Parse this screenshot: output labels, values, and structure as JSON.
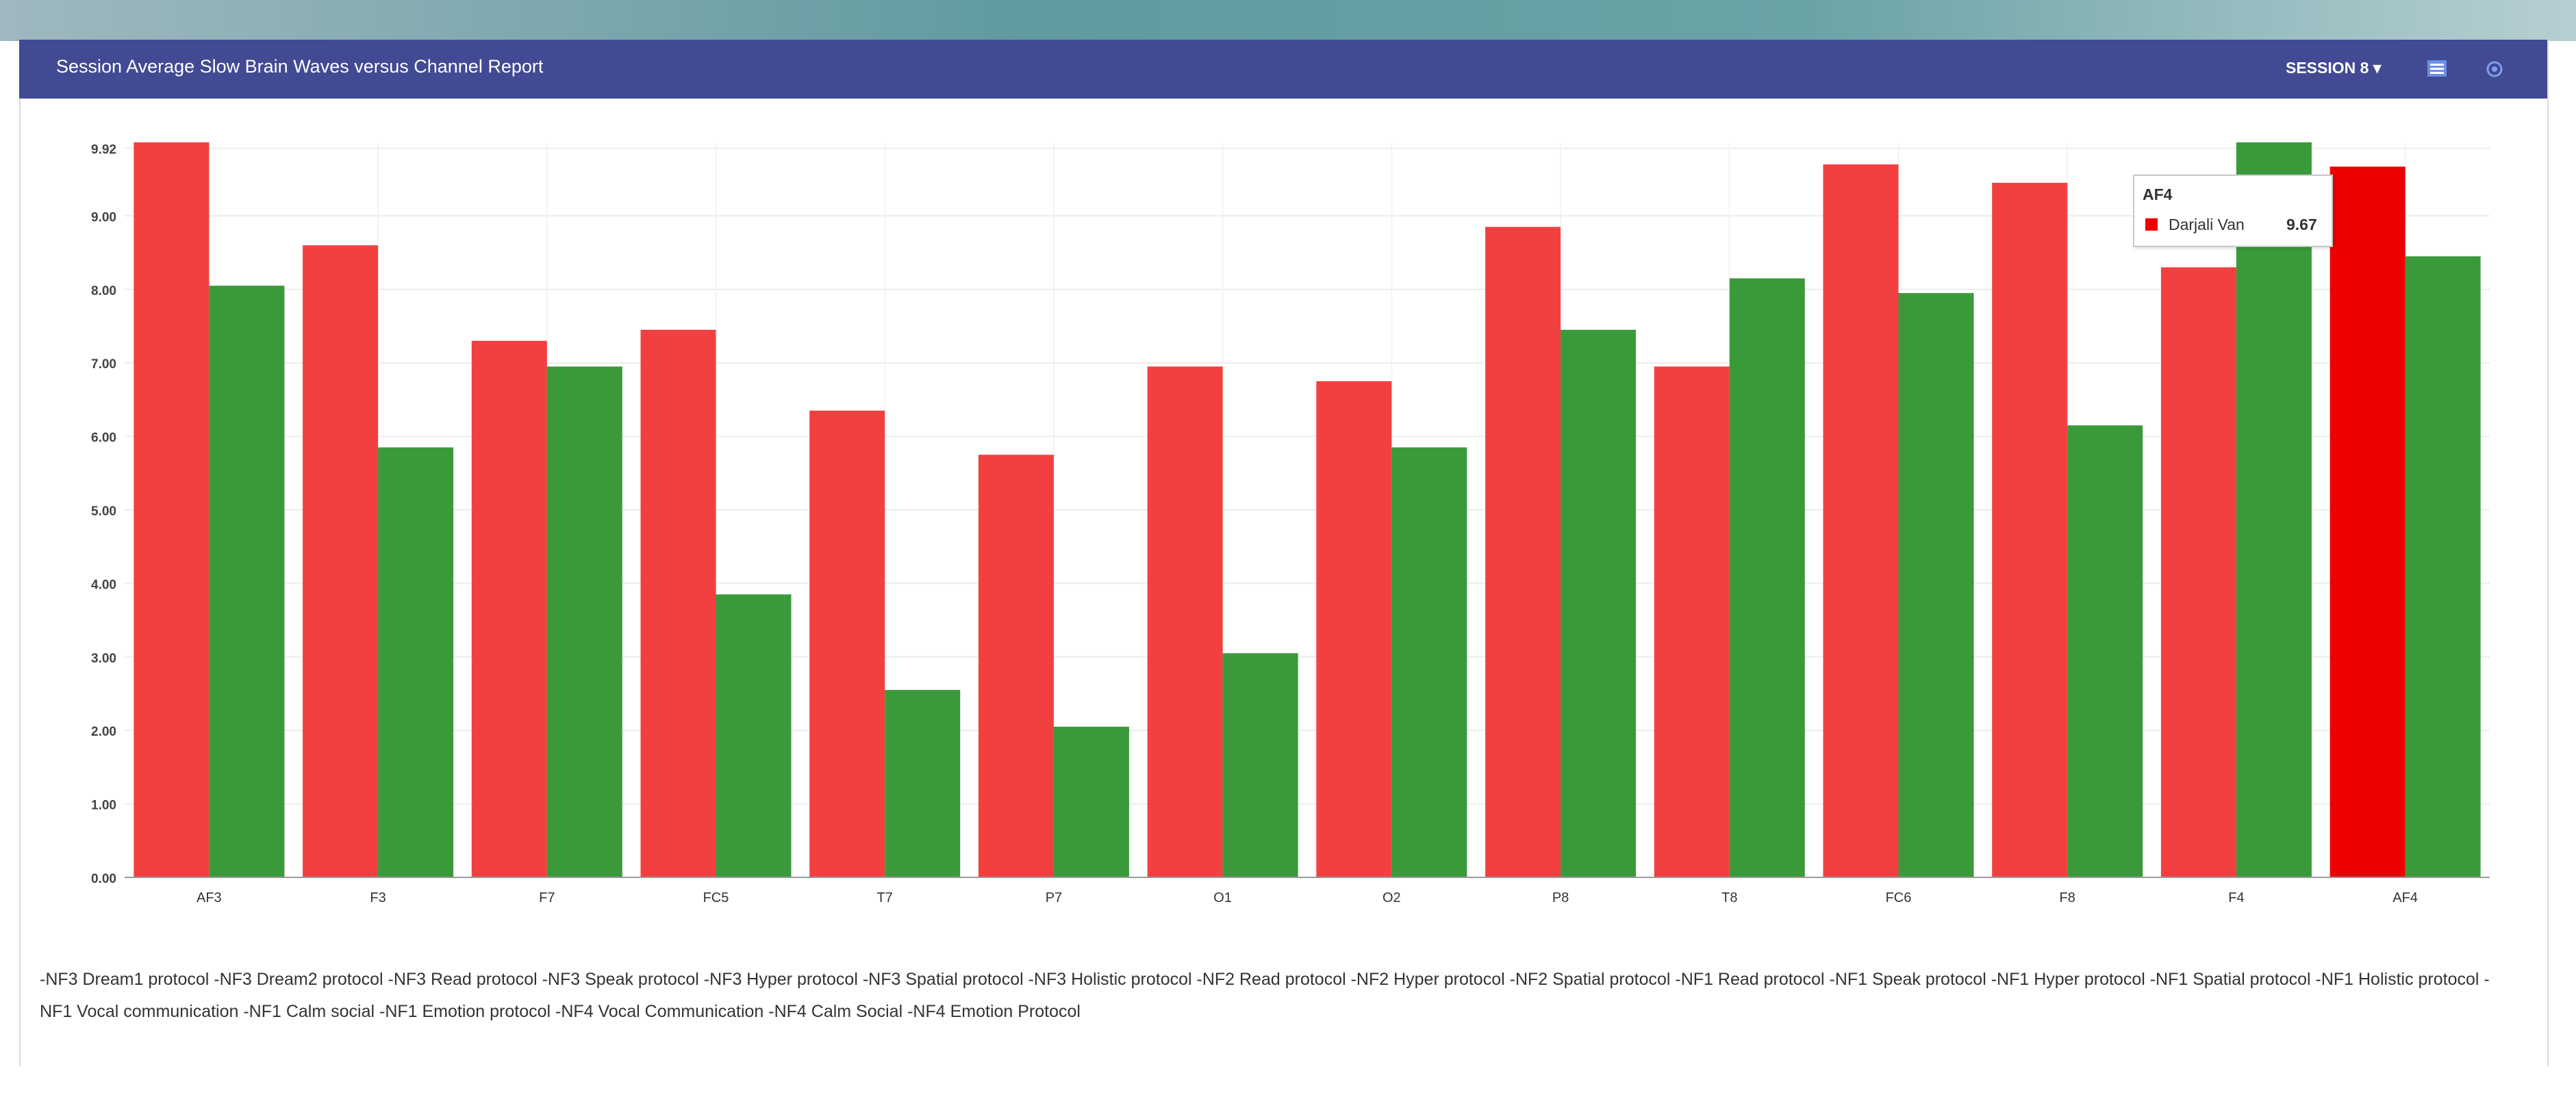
{
  "header": {
    "title": "Session Average Slow Brain Waves versus Channel Report",
    "session_label": "SESSION 8",
    "menu_icon": "menu-icon",
    "settings_icon": "gear-icon"
  },
  "colors": {
    "header_bg": "#414a92",
    "series_red": "#f24040",
    "series_red_highlight": "#ee0000",
    "series_green": "#3a9a3a"
  },
  "chart_data": {
    "type": "bar",
    "categories": [
      "AF3",
      "F3",
      "F7",
      "FC5",
      "T7",
      "P7",
      "O1",
      "O2",
      "P8",
      "T8",
      "FC6",
      "F8",
      "F4",
      "AF4"
    ],
    "series": [
      {
        "name": "Darjali Van",
        "color": "#f24040",
        "values": [
          10.0,
          8.6,
          7.3,
          7.45,
          6.35,
          5.75,
          6.95,
          6.75,
          8.85,
          6.95,
          9.7,
          9.45,
          8.3,
          9.67
        ]
      },
      {
        "values": [
          8.05,
          5.85,
          6.95,
          3.85,
          2.55,
          2.05,
          3.05,
          5.85,
          7.45,
          8.15,
          7.95,
          6.15,
          10.0,
          8.45
        ]
      }
    ],
    "yticks": [
      "0.00",
      "1.00",
      "2.00",
      "3.00",
      "4.00",
      "5.00",
      "6.00",
      "7.00",
      "8.00",
      "9.00",
      "9.92"
    ],
    "ylim": [
      0,
      10.0
    ],
    "grid": true,
    "highlighted_category": "AF4"
  },
  "tooltip": {
    "title": "AF4",
    "series_name": "Darjali Van",
    "value": "9.67"
  },
  "footer": {
    "protocols": "-NF3 Dream1 protocol -NF3 Dream2 protocol -NF3 Read protocol -NF3 Speak protocol -NF3 Hyper protocol -NF3 Spatial protocol -NF3 Holistic protocol -NF2 Read protocol -NF2 Hyper protocol -NF2 Spatial protocol -NF1 Read protocol -NF1 Speak protocol -NF1 Hyper protocol -NF1 Spatial protocol -NF1 Holistic protocol -NF1 Vocal communication -NF1 Calm social -NF1 Emotion protocol -NF4 Vocal Communication -NF4 Calm Social -NF4 Emotion Protocol"
  }
}
